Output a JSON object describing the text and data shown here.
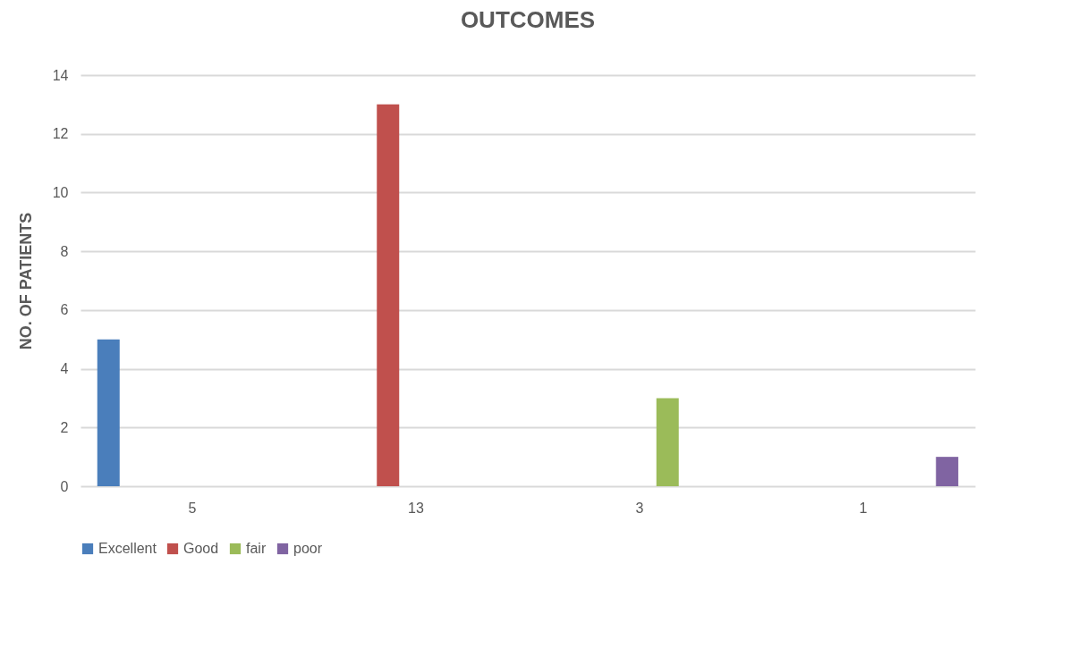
{
  "chart_data": {
    "type": "bar",
    "title": "OUTCOMES",
    "ylabel": "NO. OF PATIENTS",
    "categories": [
      "5",
      "13",
      "3",
      "1"
    ],
    "series": [
      {
        "name": "Excellent",
        "color": "#4a7ebb",
        "values": [
          5,
          null,
          null,
          null
        ]
      },
      {
        "name": "Good",
        "color": "#c0504d",
        "values": [
          null,
          13,
          null,
          null
        ]
      },
      {
        "name": "fair",
        "color": "#9bbb59",
        "values": [
          null,
          null,
          3,
          null
        ]
      },
      {
        "name": "poor",
        "color": "#8064a2",
        "values": [
          null,
          null,
          null,
          1
        ]
      }
    ],
    "ylim": [
      0,
      14
    ],
    "yticks": [
      0,
      2,
      4,
      6,
      8,
      10,
      12,
      14
    ],
    "grid": "y",
    "legend": "bottom"
  }
}
